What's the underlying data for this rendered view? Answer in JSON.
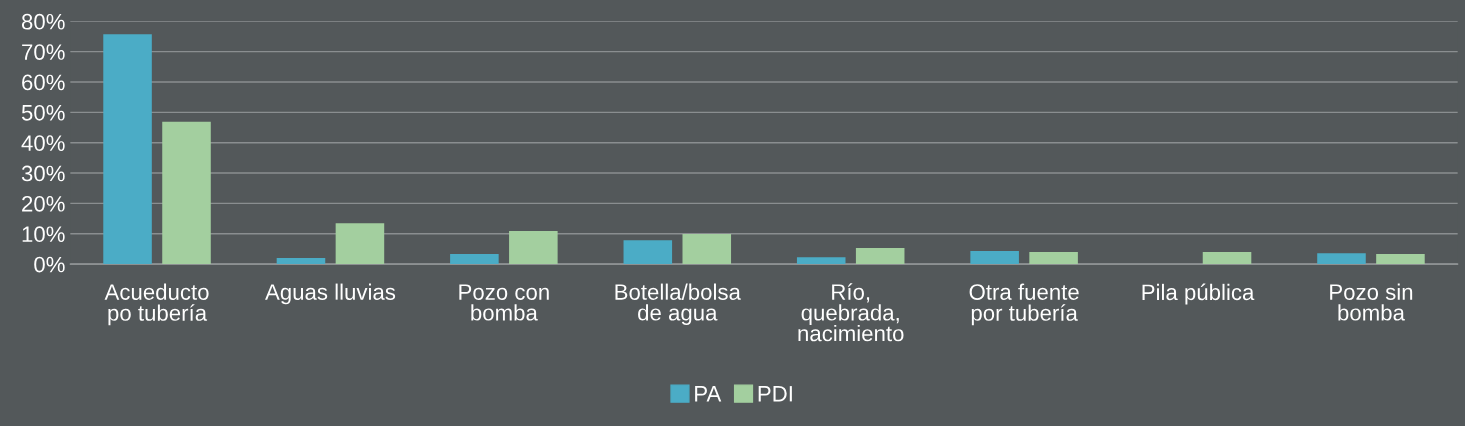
{
  "chart_data": {
    "type": "bar",
    "categories": [
      "Acueducto\npo tubería",
      "Aguas lluvias",
      "Pozo con\nbomba",
      "Botella/bolsa\nde agua",
      "Río,\nquebrada,\nnacimiento",
      "Otra fuente\npor tubería",
      "Pila pública",
      "Pozo sin\nbomba"
    ],
    "series": [
      {
        "name": "PA",
        "color": "#4bacc6",
        "values": [
          75.7,
          2.0,
          3.3,
          7.9,
          2.3,
          4.3,
          null,
          3.6
        ]
      },
      {
        "name": "PDI",
        "color": "#a3cf9f",
        "values": [
          46.9,
          13.5,
          10.9,
          9.9,
          5.3,
          4.0,
          4.0,
          3.3
        ]
      }
    ],
    "ylim": [
      0,
      80
    ],
    "yticks": [
      {
        "value": 0,
        "label": "0%"
      },
      {
        "value": 10,
        "label": "10%"
      },
      {
        "value": 20,
        "label": "20%"
      },
      {
        "value": 30,
        "label": "30%"
      },
      {
        "value": 40,
        "label": "40%"
      },
      {
        "value": 50,
        "label": "50%"
      },
      {
        "value": 60,
        "label": "60%"
      },
      {
        "value": 70,
        "label": "70%"
      },
      {
        "value": 80,
        "label": "80%"
      }
    ],
    "grid": "y",
    "legend": "bottom"
  }
}
